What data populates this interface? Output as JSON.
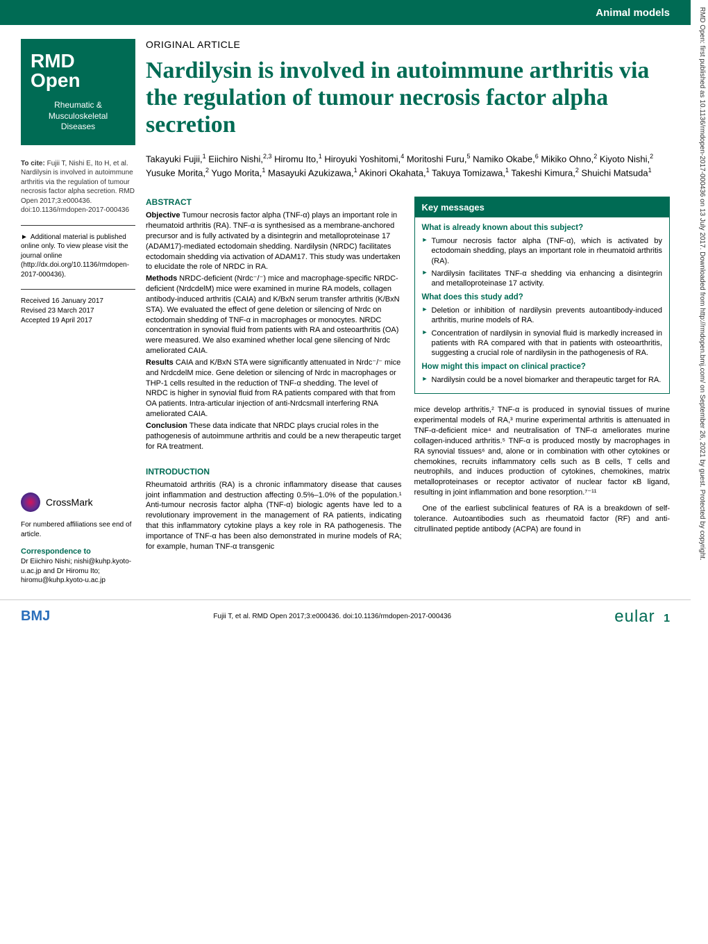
{
  "header": {
    "category": "Animal models"
  },
  "journal": {
    "logo_main": "RMD",
    "logo_sub": "Open",
    "tagline": "Rheumatic & Musculoskeletal Diseases"
  },
  "sidebar": {
    "cite_label": "To cite:",
    "cite_text": "Fujii T, Nishi E, Ito H, et al. Nardilysin is involved in autoimmune arthritis via the regulation of tumour necrosis factor alpha secretion. RMD Open 2017;3:e000436. doi:10.1136/rmdopen-2017-000436",
    "suppl": "Additional material is published online only. To view please visit the journal online (http://dx.doi.org/10.1136/rmdopen-2017-000436).",
    "received": "Received 16 January 2017",
    "revised": "Revised 23 March 2017",
    "accepted": "Accepted 19 April 2017",
    "crossmark": "CrossMark",
    "aff_note": "For numbered affiliations see end of article.",
    "corr_label": "Correspondence to",
    "corr_text": "Dr Eiichiro Nishi; nishi@kuhp.kyoto-u.ac.jp and Dr Hiromu Ito; hiromu@kuhp.kyoto-u.ac.jp"
  },
  "article": {
    "type": "ORIGINAL ARTICLE",
    "title": "Nardilysin is involved in autoimmune arthritis via the regulation of tumour necrosis factor alpha secretion",
    "authors_html": "Takayuki Fujii,<sup>1</sup> Eiichiro Nishi,<sup>2,3</sup> Hiromu Ito,<sup>1</sup> Hiroyuki Yoshitomi,<sup>4</sup> Moritoshi Furu,<sup>5</sup> Namiko Okabe,<sup>6</sup> Mikiko Ohno,<sup>2</sup> Kiyoto Nishi,<sup>2</sup> Yusuke Morita,<sup>2</sup> Yugo Morita,<sup>1</sup> Masayuki Azukizawa,<sup>1</sup> Akinori Okahata,<sup>1</sup> Takuya Tomizawa,<sup>1</sup> Takeshi Kimura,<sup>2</sup> Shuichi Matsuda<sup>1</sup>"
  },
  "abstract": {
    "heading": "ABSTRACT",
    "objective_label": "Objective",
    "objective": "Tumour necrosis factor alpha (TNF-α) plays an important role in rheumatoid arthritis (RA). TNF-α is synthesised as a membrane-anchored precursor and is fully activated by a disintegrin and metalloproteinase 17 (ADAM17)-mediated ectodomain shedding. Nardilysin (NRDC) facilitates ectodomain shedding via activation of ADAM17. This study was undertaken to elucidate the role of NRDC in RA.",
    "methods_label": "Methods",
    "methods": "NRDC-deficient (Nrdc⁻/⁻) mice and macrophage-specific NRDC-deficient (NrdcdelM) mice were examined in murine RA models, collagen antibody-induced arthritis (CAIA) and K/BxN serum transfer arthritis (K/BxN STA). We evaluated the effect of gene deletion or silencing of Nrdc on ectodomain shedding of TNF-α in macrophages or monocytes. NRDC concentration in synovial fluid from patients with RA and osteoarthritis (OA) were measured. We also examined whether local gene silencing of Nrdc ameliorated CAIA.",
    "results_label": "Results",
    "results": "CAIA and K/BxN STA were significantly attenuated in Nrdc⁻/⁻ mice and NrdcdelM mice. Gene deletion or silencing of Nrdc in macrophages or THP-1 cells resulted in the reduction of TNF-α shedding. The level of NRDC is higher in synovial fluid from RA patients compared with that from OA patients. Intra-articular injection of anti-Nrdcsmall interfering RNA ameliorated CAIA.",
    "conclusion_label": "Conclusion",
    "conclusion": "These data indicate that NRDC plays crucial roles in the pathogenesis of autoimmune arthritis and could be a new therapeutic target for RA treatment."
  },
  "box": {
    "header": "Key messages",
    "q1": "What is already known about this subject?",
    "q1_items": [
      "Tumour necrosis factor alpha (TNF-α), which is activated by ectodomain shedding, plays an important role in rheumatoid arthritis (RA).",
      "Nardilysin facilitates TNF-α shedding via enhancing a disintegrin and metalloproteinase 17 activity."
    ],
    "q2": "What does this study add?",
    "q2_items": [
      "Deletion or inhibition of nardilysin prevents autoantibody-induced arthritis, murine models of RA.",
      "Concentration of nardilysin in synovial fluid is markedly increased in patients with RA compared with that in patients with osteoarthritis, suggesting a crucial role of nardilysin in the pathogenesis of RA."
    ],
    "q3": "How might this impact on clinical practice?",
    "q3_items": [
      "Nardilysin could be a novel biomarker and therapeutic target for RA."
    ]
  },
  "intro": {
    "heading": "INTRODUCTION",
    "para1": "Rheumatoid arthritis (RA) is a chronic inflammatory disease that causes joint inflammation and destruction affecting 0.5%–1.0% of the population.¹ Anti-tumour necrosis factor alpha (TNF-α) biologic agents have led to a revolutionary improvement in the management of RA patients, indicating that this inflammatory cytokine plays a key role in RA pathogenesis. The importance of TNF-α has been also demonstrated in murine models of RA; for example, human TNF-α transgenic",
    "para2": "mice develop arthritis,² TNF-α is produced in synovial tissues of murine experimental models of RA,³ murine experimental arthritis is attenuated in TNF-α-deficient mice⁴ and neutralisation of TNF-α ameliorates murine collagen-induced arthritis.⁵ TNF-α is produced mostly by macrophages in RA synovial tissues⁶ and, alone or in combination with other cytokines or chemokines, recruits inflammatory cells such as B cells, T cells and neutrophils, and induces production of cytokines, chemokines, matrix metalloproteinases or receptor activator of nuclear factor κB ligand, resulting in joint inflammation and bone resorption.⁷⁻¹¹",
    "para3": "One of the earliest subclinical features of RA is a breakdown of self-tolerance. Autoantibodies such as rheumatoid factor (RF) and anti-citrullinated peptide antibody (ACPA) are found in"
  },
  "footer": {
    "bmj": "BMJ",
    "cite": "Fujii T, et al. RMD Open 2017;3:e000436. doi:10.1136/rmdopen-2017-000436",
    "eular": "eular",
    "page": "1"
  },
  "copyright": "RMD Open: first published as 10.1136/rmdopen-2017-000436 on 13 July 2017. Downloaded from http://rmdopen.bmj.com/ on September 26, 2021 by guest. Protected by copyright."
}
